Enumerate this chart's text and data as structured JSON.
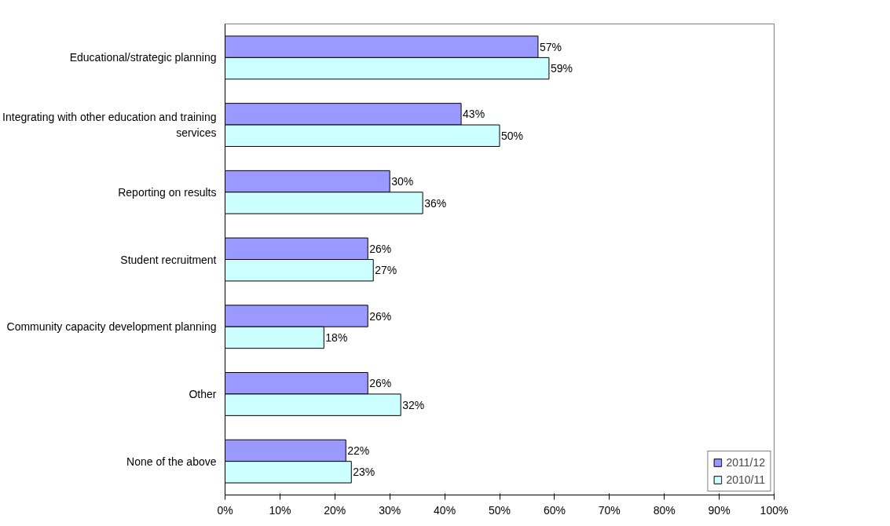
{
  "chart_data": {
    "type": "bar",
    "orientation": "horizontal",
    "categories": [
      "Educational/strategic planning",
      "Integrating with other education and training\nservices",
      "Reporting on results",
      "Student recruitment",
      "Community capacity development planning",
      "Other",
      "None of the above"
    ],
    "series": [
      {
        "name": "2011/12",
        "color": "#9999ff",
        "values": [
          57,
          43,
          30,
          26,
          26,
          26,
          22
        ],
        "value_labels": [
          "57%",
          "43%",
          "30%",
          "26%",
          "26%",
          "26%",
          "22%"
        ]
      },
      {
        "name": "2010/11",
        "color": "#ccffff",
        "values": [
          59,
          50,
          36,
          27,
          18,
          32,
          23
        ],
        "value_labels": [
          "59%",
          "50%",
          "36%",
          "27%",
          "18%",
          "32%",
          "23%"
        ]
      }
    ],
    "xlim": [
      0,
      100
    ],
    "xticks": [
      {
        "value": 0,
        "label": "0%"
      },
      {
        "value": 10,
        "label": "10%"
      },
      {
        "value": 20,
        "label": "20%"
      },
      {
        "value": 30,
        "label": "30%"
      },
      {
        "value": 40,
        "label": "40%"
      },
      {
        "value": 50,
        "label": "50%"
      },
      {
        "value": 60,
        "label": "60%"
      },
      {
        "value": 70,
        "label": "70%"
      },
      {
        "value": 80,
        "label": "80%"
      },
      {
        "value": 90,
        "label": "90%"
      },
      {
        "value": 100,
        "label": "100%"
      }
    ],
    "grid": false,
    "legend": "bottom right"
  }
}
